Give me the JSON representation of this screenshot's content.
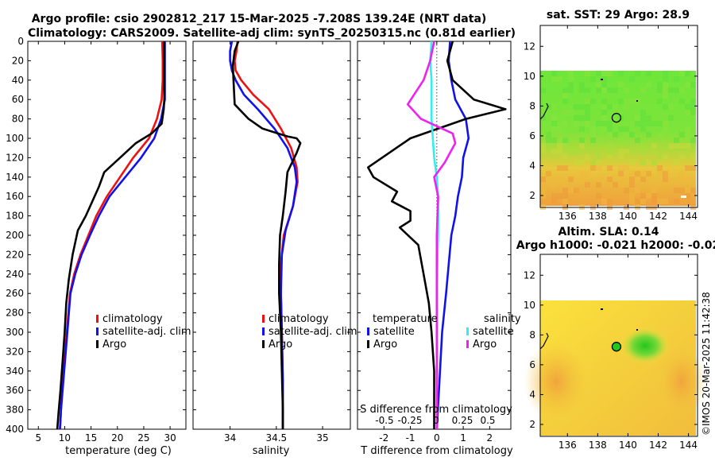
{
  "titles": {
    "line1": "Argo profile: csio 2902812_217 15-Mar-2025 -7.208S 139.24E (NRT data)",
    "line2": "Climatology: CARS2009. Satellite-adj clim: synTS_20250315.nc (0.81d earlier)",
    "sst_title": "sat. SST: 29 Argo: 28.9",
    "sla_title1": "Altim. SLA: 0.14",
    "sla_title2": "Argo h1000: -0.021 h2000: -0.02"
  },
  "timestamp": "©IMOS 20-Mar-2025 11:42:38",
  "colors": {
    "climatology": "#ee1111",
    "satellite": "#1111ee",
    "argo": "#000000",
    "sal_sat": "#33eeee",
    "sal_sat_diff": "#ee22ee"
  },
  "chart_data": [
    {
      "type": "line",
      "name": "temperature",
      "xlabel": "temperature (deg C)",
      "ylabel": "depth",
      "xlim": [
        3,
        33
      ],
      "ylim": [
        400,
        0
      ],
      "xticks": [
        5,
        10,
        15,
        20,
        25,
        30
      ],
      "xticklabels": [
        "5",
        "10",
        "15",
        "20",
        "25",
        "30"
      ],
      "yticks": [
        0,
        20,
        40,
        60,
        80,
        100,
        120,
        140,
        160,
        180,
        200,
        220,
        240,
        260,
        280,
        300,
        320,
        340,
        360,
        380,
        400
      ],
      "legend": [
        "climatology",
        "satellite-adj. clim",
        "Argo"
      ],
      "series": [
        {
          "name": "climatology",
          "color": "#ee1111",
          "points": [
            [
              28.5,
              0
            ],
            [
              28.6,
              20
            ],
            [
              28.6,
              40
            ],
            [
              28.4,
              60
            ],
            [
              27.5,
              80
            ],
            [
              26,
              100
            ],
            [
              23,
              120
            ],
            [
              20.5,
              140
            ],
            [
              18,
              160
            ],
            [
              16,
              180
            ],
            [
              14.5,
              200
            ],
            [
              13,
              220
            ],
            [
              11.8,
              240
            ],
            [
              11,
              260
            ],
            [
              10.7,
              280
            ],
            [
              10.4,
              300
            ],
            [
              10.1,
              320
            ],
            [
              9.8,
              340
            ],
            [
              9.5,
              360
            ],
            [
              9.3,
              380
            ],
            [
              9.1,
              400
            ]
          ]
        },
        {
          "name": "satellite-adj. clim",
          "color": "#1111ee",
          "points": [
            [
              29,
              0
            ],
            [
              29,
              20
            ],
            [
              29,
              40
            ],
            [
              29,
              60
            ],
            [
              28.3,
              80
            ],
            [
              27,
              100
            ],
            [
              24.5,
              120
            ],
            [
              21.5,
              140
            ],
            [
              18.5,
              160
            ],
            [
              16.5,
              180
            ],
            [
              14.8,
              200
            ],
            [
              13.2,
              220
            ],
            [
              12,
              240
            ],
            [
              11.1,
              260
            ],
            [
              10.8,
              280
            ],
            [
              10.5,
              300
            ],
            [
              10.2,
              320
            ],
            [
              9.9,
              340
            ],
            [
              9.6,
              360
            ],
            [
              9.3,
              380
            ],
            [
              9.1,
              400
            ]
          ]
        },
        {
          "name": "Argo",
          "color": "#000000",
          "points": [
            [
              28.9,
              0
            ],
            [
              28.9,
              20
            ],
            [
              28.9,
              40
            ],
            [
              28.9,
              60
            ],
            [
              28.8,
              70
            ],
            [
              28.4,
              85
            ],
            [
              26.5,
              95
            ],
            [
              23.5,
              105
            ],
            [
              20.5,
              120
            ],
            [
              17.5,
              135
            ],
            [
              16.5,
              150
            ],
            [
              14,
              180
            ],
            [
              12.5,
              195
            ],
            [
              11.5,
              220
            ],
            [
              10.8,
              245
            ],
            [
              10.3,
              270
            ],
            [
              10,
              300
            ],
            [
              9.6,
              330
            ],
            [
              9.2,
              360
            ],
            [
              8.8,
              385
            ],
            [
              8.6,
              400
            ]
          ]
        }
      ]
    },
    {
      "type": "line",
      "name": "salinity",
      "xlabel": "salinity",
      "xlim": [
        33.6,
        35.3
      ],
      "ylim": [
        400,
        0
      ],
      "xticks": [
        34,
        34.5,
        35
      ],
      "xticklabels": [
        "34",
        "34.5",
        "35"
      ],
      "legend": [
        "climatology",
        "satellite-adj. clim",
        "Argo"
      ],
      "series": [
        {
          "name": "climatology",
          "color": "#ee1111",
          "points": [
            [
              34.08,
              0
            ],
            [
              34.07,
              10
            ],
            [
              34.05,
              20
            ],
            [
              34.06,
              30
            ],
            [
              34.12,
              40
            ],
            [
              34.25,
              55
            ],
            [
              34.42,
              70
            ],
            [
              34.55,
              90
            ],
            [
              34.66,
              110
            ],
            [
              34.72,
              130
            ],
            [
              34.73,
              145
            ],
            [
              34.68,
              170
            ],
            [
              34.58,
              200
            ],
            [
              34.55,
              230
            ],
            [
              34.55,
              260
            ],
            [
              34.56,
              300
            ],
            [
              34.57,
              350
            ],
            [
              34.57,
              400
            ]
          ]
        },
        {
          "name": "satellite-adj. clim",
          "color": "#1111ee",
          "points": [
            [
              34.02,
              0
            ],
            [
              34.0,
              10
            ],
            [
              34.0,
              20
            ],
            [
              34.02,
              30
            ],
            [
              34.06,
              40
            ],
            [
              34.15,
              55
            ],
            [
              34.3,
              70
            ],
            [
              34.48,
              90
            ],
            [
              34.62,
              110
            ],
            [
              34.7,
              130
            ],
            [
              34.72,
              145
            ],
            [
              34.68,
              170
            ],
            [
              34.6,
              195
            ],
            [
              34.56,
              220
            ],
            [
              34.55,
              260
            ],
            [
              34.56,
              300
            ],
            [
              34.57,
              350
            ],
            [
              34.57,
              400
            ]
          ]
        },
        {
          "name": "Argo",
          "color": "#000000",
          "points": [
            [
              34.09,
              0
            ],
            [
              34.05,
              10
            ],
            [
              34.03,
              25
            ],
            [
              34.04,
              45
            ],
            [
              34.05,
              65
            ],
            [
              34.2,
              80
            ],
            [
              34.35,
              90
            ],
            [
              34.62,
              98
            ],
            [
              34.72,
              100
            ],
            [
              34.76,
              105
            ],
            [
              34.72,
              115
            ],
            [
              34.67,
              125
            ],
            [
              34.62,
              135
            ],
            [
              34.6,
              155
            ],
            [
              34.57,
              180
            ],
            [
              34.54,
              200
            ],
            [
              34.53,
              230
            ],
            [
              34.53,
              260
            ],
            [
              34.55,
              300
            ],
            [
              34.56,
              340
            ],
            [
              34.57,
              380
            ],
            [
              34.57,
              400
            ]
          ]
        }
      ]
    },
    {
      "type": "line",
      "name": "difference",
      "xlabel": "T difference from climatology",
      "xlabel2": "S difference from climatology",
      "xlim": [
        -3,
        2.8
      ],
      "ylim": [
        400,
        0
      ],
      "xticks": [
        -2,
        -1,
        0,
        1,
        2
      ],
      "xticklabels": [
        "-2",
        "-1",
        "0",
        "1",
        "2"
      ],
      "s_xticklabels": [
        "-0.5",
        "-0.25",
        "0",
        "0.25",
        "0.5"
      ],
      "legend_headers": [
        "temperature",
        "salinity"
      ],
      "legend_labels": [
        "satellite",
        "Argo",
        "satellite",
        "Argo"
      ],
      "series": [
        {
          "name": "temperature satellite",
          "color": "#1111ee",
          "points": [
            [
              0.5,
              0
            ],
            [
              0.45,
              20
            ],
            [
              0.55,
              40
            ],
            [
              0.7,
              60
            ],
            [
              1.1,
              80
            ],
            [
              1.2,
              100
            ],
            [
              1.0,
              120
            ],
            [
              0.95,
              140
            ],
            [
              0.8,
              160
            ],
            [
              0.7,
              180
            ],
            [
              0.55,
              200
            ],
            [
              0.45,
              230
            ],
            [
              0.35,
              260
            ],
            [
              0.2,
              300
            ],
            [
              0.1,
              350
            ],
            [
              0.0,
              400
            ]
          ]
        },
        {
          "name": "temperature Argo",
          "color": "#000000",
          "points": [
            [
              0.6,
              0
            ],
            [
              0.4,
              20
            ],
            [
              0.6,
              40
            ],
            [
              1.4,
              60
            ],
            [
              2.6,
              70
            ],
            [
              1.1,
              80
            ],
            [
              -1.0,
              100
            ],
            [
              -2.6,
              130
            ],
            [
              -2.4,
              140
            ],
            [
              -1.5,
              155
            ],
            [
              -1.7,
              165
            ],
            [
              -1.0,
              175
            ],
            [
              -1.0,
              185
            ],
            [
              -1.4,
              192
            ],
            [
              -0.7,
              210
            ],
            [
              -0.5,
              240
            ],
            [
              -0.3,
              270
            ],
            [
              -0.2,
              300
            ],
            [
              -0.1,
              340
            ],
            [
              -0.1,
              380
            ],
            [
              -0.1,
              400
            ]
          ]
        },
        {
          "name": "salinity satellite",
          "color": "#33eeee",
          "points": [
            [
              -0.2,
              0
            ],
            [
              -0.25,
              20
            ],
            [
              -0.2,
              40
            ],
            [
              -0.2,
              60
            ],
            [
              -0.2,
              80
            ],
            [
              -0.15,
              100
            ],
            [
              -0.1,
              120
            ],
            [
              0,
              140
            ],
            [
              0.05,
              160
            ],
            [
              0.05,
              200
            ],
            [
              0,
              250
            ],
            [
              0,
              300
            ],
            [
              0,
              350
            ],
            [
              0,
              400
            ]
          ]
        },
        {
          "name": "salinity Argo",
          "color": "#ee22ee",
          "points": [
            [
              -0.1,
              0
            ],
            [
              -0.25,
              20
            ],
            [
              -0.5,
              40
            ],
            [
              -1.1,
              65
            ],
            [
              -0.6,
              80
            ],
            [
              0.6,
              95
            ],
            [
              0.7,
              105
            ],
            [
              0.3,
              125
            ],
            [
              -0.1,
              140
            ],
            [
              0.05,
              160
            ],
            [
              0.0,
              200
            ],
            [
              0.0,
              250
            ],
            [
              0.0,
              300
            ],
            [
              0.0,
              350
            ],
            [
              0.0,
              400
            ]
          ]
        }
      ]
    },
    {
      "type": "heatmap",
      "name": "sst_map",
      "xlim": [
        134.2,
        144.6
      ],
      "ylim": [
        1.2,
        13.4
      ],
      "xticks": [
        136,
        138,
        140,
        142,
        144
      ],
      "xticklabels": [
        "136",
        "138",
        "140",
        "142",
        "144"
      ],
      "yticks": [
        2,
        4,
        6,
        8,
        10,
        12
      ],
      "yticklabels": [
        "2",
        "4",
        "6",
        "8",
        "10",
        "12"
      ],
      "argo_position": [
        139.24,
        7.21
      ]
    },
    {
      "type": "heatmap",
      "name": "sla_map",
      "xlim": [
        134.2,
        144.6
      ],
      "ylim": [
        1.2,
        13.4
      ],
      "xticks": [
        136,
        138,
        140,
        142,
        144
      ],
      "xticklabels": [
        "136",
        "138",
        "140",
        "142",
        "144"
      ],
      "yticks": [
        2,
        4,
        6,
        8,
        10,
        12
      ],
      "yticklabels": [
        "2",
        "4",
        "6",
        "8",
        "10",
        "12"
      ],
      "argo_position": [
        139.24,
        7.21
      ]
    }
  ]
}
